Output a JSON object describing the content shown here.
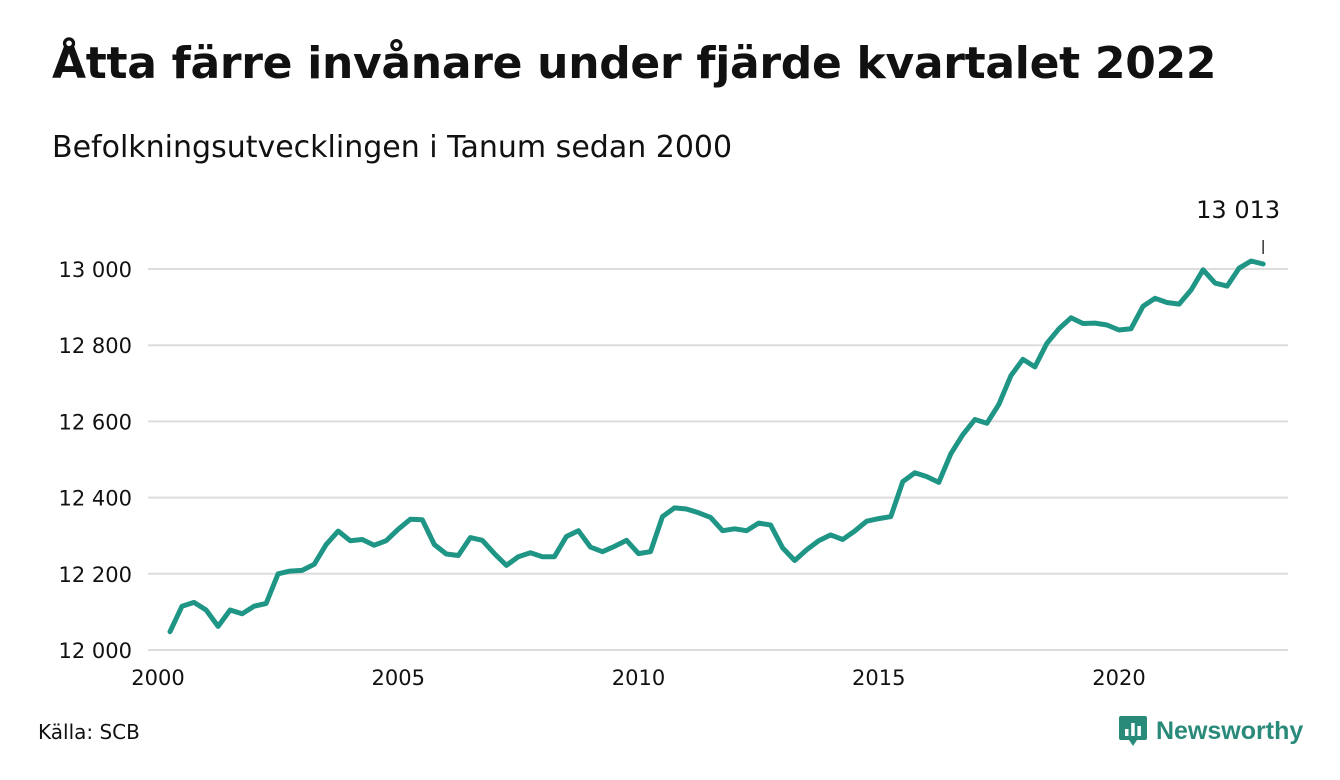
{
  "header": {
    "title": "Åtta färre invånare under fjärde kvartalet 2022",
    "subtitle": "Befolkningsutvecklingen i Tanum sedan 2000"
  },
  "footer": {
    "source": "Källa: SCB",
    "brand": "Newsworthy"
  },
  "colors": {
    "line": "#1f9585",
    "grid": "#dddddd",
    "brand": "#2a8a7a"
  },
  "chart_data": {
    "type": "line",
    "title": "Åtta färre invånare under fjärde kvartalet 2022",
    "subtitle": "Befolkningsutvecklingen i Tanum sedan 2000",
    "xlabel": "",
    "ylabel": "",
    "xlim": [
      2000.0,
      2023.5
    ],
    "ylim": [
      12000,
      13100
    ],
    "x_ticks": [
      2000,
      2005,
      2010,
      2015,
      2020
    ],
    "x_tick_labels": [
      "2000",
      "2005",
      "2010",
      "2015",
      "2020"
    ],
    "y_ticks": [
      12000,
      12200,
      12400,
      12600,
      12800,
      13000
    ],
    "y_tick_labels": [
      "12 000",
      "12 200",
      "12 400",
      "12 600",
      "12 800",
      "13 000"
    ],
    "grid": true,
    "legend": "none",
    "annotation": {
      "x": 2023.0,
      "value": 13013,
      "label": "13 013"
    },
    "series": [
      {
        "x": [
          2000.25,
          2000.5,
          2000.75,
          2001.0,
          2001.25,
          2001.5,
          2001.75,
          2002.0,
          2002.25,
          2002.5,
          2002.75,
          2003.0,
          2003.25,
          2003.5,
          2003.75,
          2004.0,
          2004.25,
          2004.5,
          2004.75,
          2005.0,
          2005.25,
          2005.5,
          2005.75,
          2006.0,
          2006.25,
          2006.5,
          2006.75,
          2007.0,
          2007.25,
          2007.5,
          2007.75,
          2008.0,
          2008.25,
          2008.5,
          2008.75,
          2009.0,
          2009.25,
          2009.5,
          2009.75,
          2010.0,
          2010.25,
          2010.5,
          2010.75,
          2011.0,
          2011.25,
          2011.5,
          2011.75,
          2012.0,
          2012.25,
          2012.5,
          2012.75,
          2013.0,
          2013.25,
          2013.5,
          2013.75,
          2014.0,
          2014.25,
          2014.5,
          2014.75,
          2015.0,
          2015.25,
          2015.5,
          2015.75,
          2016.0,
          2016.25,
          2016.5,
          2016.75,
          2017.0,
          2017.25,
          2017.5,
          2017.75,
          2018.0,
          2018.25,
          2018.5,
          2018.75,
          2019.0,
          2019.25,
          2019.5,
          2019.75,
          2020.0,
          2020.25,
          2020.5,
          2020.75,
          2021.0,
          2021.25,
          2021.5,
          2021.75,
          2022.0,
          2022.25,
          2022.5,
          2022.75,
          2023.0
        ],
        "values": [
          12048,
          12115,
          12125,
          12105,
          12062,
          12105,
          12095,
          12115,
          12122,
          12200,
          12207,
          12209,
          12225,
          12277,
          12312,
          12287,
          12290,
          12275,
          12287,
          12317,
          12343,
          12342,
          12277,
          12252,
          12248,
          12295,
          12288,
          12253,
          12222,
          12245,
          12255,
          12245,
          12245,
          12298,
          12313,
          12270,
          12258,
          12272,
          12288,
          12253,
          12258,
          12350,
          12373,
          12370,
          12360,
          12348,
          12313,
          12318,
          12313,
          12333,
          12328,
          12268,
          12235,
          12263,
          12287,
          12302,
          12290,
          12312,
          12338,
          12345,
          12350,
          12442,
          12465,
          12455,
          12440,
          12515,
          12565,
          12605,
          12595,
          12645,
          12720,
          12763,
          12743,
          12805,
          12843,
          12872,
          12857,
          12858,
          12853,
          12840,
          12843,
          12902,
          12923,
          12912,
          12908,
          12945,
          12998,
          12963,
          12955,
          13002,
          13021,
          13013
        ]
      }
    ]
  }
}
